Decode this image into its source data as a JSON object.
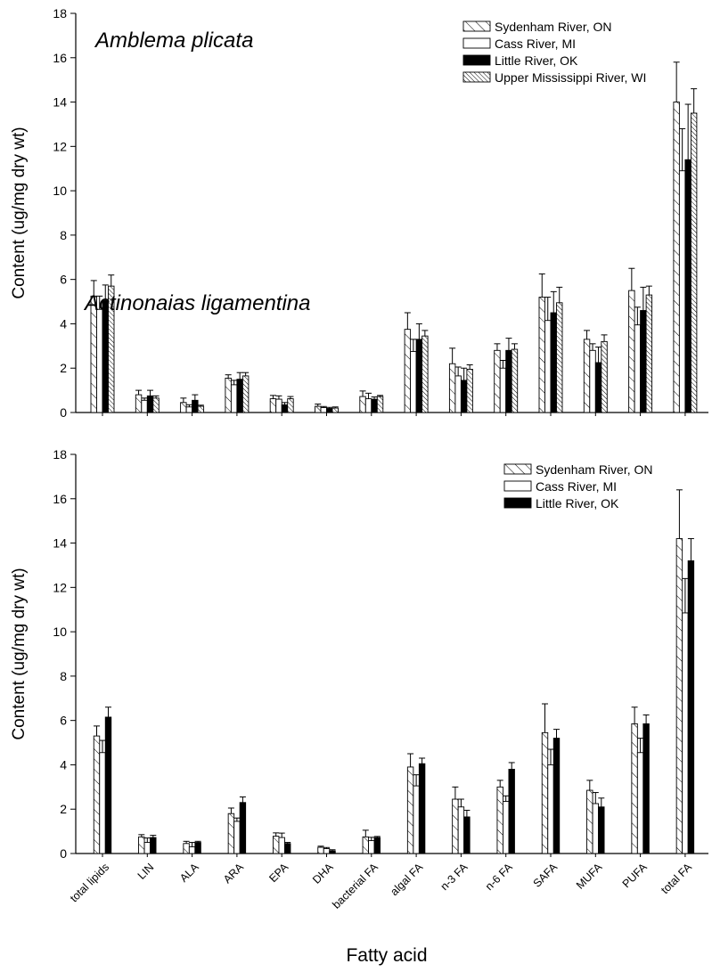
{
  "xlabel": "Fatty acid",
  "categories": [
    "total lipids",
    "LIN",
    "ALA",
    "ARA",
    "EPA",
    "DHA",
    "bacterial FA",
    "algal FA",
    "n-3 FA",
    "n-6 FA",
    "SAFA",
    "MUFA",
    "PUFA",
    "total FA"
  ],
  "chart_data": [
    {
      "type": "bar",
      "title": "Amblema plicata",
      "ylabel": "Content (ug/mg dry wt)",
      "ylim": [
        0,
        18
      ],
      "yticks": [
        0,
        2,
        4,
        6,
        8,
        10,
        12,
        14,
        16,
        18
      ],
      "legend_position": "top-right",
      "error_bars": true,
      "series": [
        {
          "name": "Sydenham River, ON",
          "fill": "hatch-wide",
          "values": [
            5.25,
            0.8,
            0.45,
            1.55,
            0.62,
            0.28,
            0.72,
            3.75,
            2.2,
            2.8,
            5.2,
            3.3,
            5.5,
            14.0
          ],
          "errors": [
            0.7,
            0.2,
            0.2,
            0.15,
            0.15,
            0.1,
            0.25,
            0.75,
            0.7,
            0.3,
            1.05,
            0.4,
            1.0,
            1.8
          ]
        },
        {
          "name": "Cass River, MI",
          "fill": "#ffffff",
          "values": [
            4.65,
            0.55,
            0.25,
            1.25,
            0.6,
            0.22,
            0.62,
            2.75,
            1.65,
            2.0,
            4.15,
            2.8,
            3.95,
            10.9
          ],
          "errors": [
            0.6,
            0.1,
            0.1,
            0.2,
            0.15,
            0.05,
            0.25,
            0.55,
            0.4,
            0.35,
            1.05,
            0.3,
            0.8,
            1.9
          ]
        },
        {
          "name": "Little River, OK",
          "fill": "#000000",
          "values": [
            5.05,
            0.75,
            0.55,
            1.5,
            0.35,
            0.18,
            0.6,
            3.3,
            1.45,
            2.8,
            4.5,
            2.25,
            4.6,
            11.4
          ],
          "errors": [
            0.7,
            0.25,
            0.25,
            0.3,
            0.1,
            0.05,
            0.1,
            0.7,
            0.55,
            0.55,
            0.95,
            0.7,
            1.05,
            2.5
          ]
        },
        {
          "name": "Upper Mississippi River, WI",
          "fill": "hatch-dense",
          "values": [
            5.7,
            0.65,
            0.28,
            1.65,
            0.62,
            0.2,
            0.72,
            3.45,
            1.95,
            2.85,
            4.95,
            3.2,
            5.3,
            13.5
          ],
          "errors": [
            0.5,
            0.1,
            0.05,
            0.15,
            0.1,
            0.05,
            0.05,
            0.25,
            0.2,
            0.25,
            0.7,
            0.3,
            0.4,
            1.1
          ]
        }
      ]
    },
    {
      "type": "bar",
      "title": "Actinonaias ligamentina",
      "ylabel": "Content (ug/mg dry wt)",
      "ylim": [
        0,
        18
      ],
      "yticks": [
        0,
        2,
        4,
        6,
        8,
        10,
        12,
        14,
        16,
        18
      ],
      "legend_position": "top-right",
      "error_bars": true,
      "series": [
        {
          "name": "Sydenham River, ON",
          "fill": "hatch-wide",
          "values": [
            5.3,
            0.75,
            0.45,
            1.8,
            0.78,
            0.28,
            0.75,
            3.9,
            2.45,
            3.0,
            5.45,
            2.85,
            5.85,
            14.2
          ],
          "errors": [
            0.45,
            0.1,
            0.1,
            0.25,
            0.15,
            0.05,
            0.3,
            0.6,
            0.55,
            0.3,
            1.3,
            0.45,
            0.75,
            2.2
          ]
        },
        {
          "name": "Cass River, MI",
          "fill": "#ffffff",
          "values": [
            4.55,
            0.5,
            0.3,
            1.45,
            0.72,
            0.22,
            0.58,
            3.05,
            2.1,
            2.35,
            4.0,
            2.25,
            4.55,
            10.85
          ],
          "errors": [
            0.55,
            0.2,
            0.2,
            0.15,
            0.2,
            0.05,
            0.15,
            0.5,
            0.35,
            0.25,
            0.7,
            0.5,
            0.65,
            1.55
          ]
        },
        {
          "name": "Little River, OK",
          "fill": "#000000",
          "values": [
            6.15,
            0.72,
            0.5,
            2.3,
            0.45,
            0.12,
            0.72,
            4.05,
            1.65,
            3.8,
            5.2,
            2.1,
            5.85,
            13.2
          ],
          "errors": [
            0.45,
            0.1,
            0.05,
            0.25,
            0.05,
            0.05,
            0.05,
            0.25,
            0.3,
            0.3,
            0.4,
            0.4,
            0.4,
            1.0
          ]
        }
      ]
    }
  ]
}
